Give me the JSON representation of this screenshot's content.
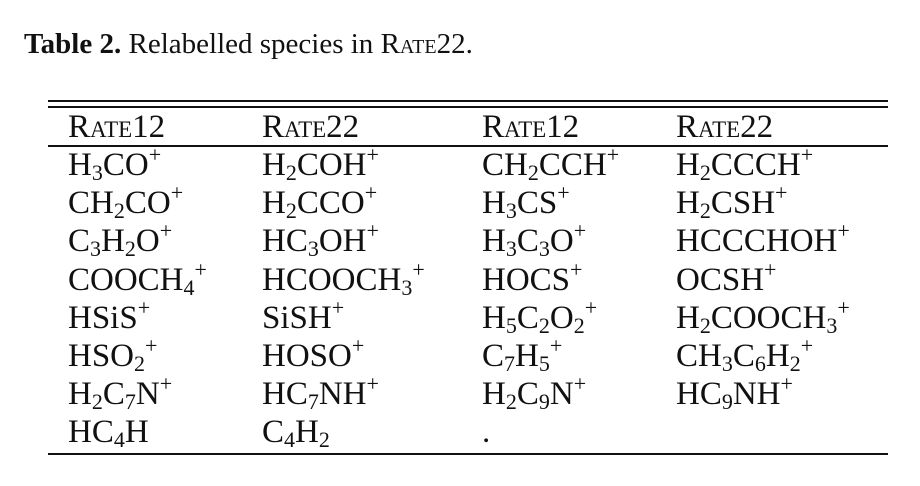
{
  "caption": {
    "label": "Table 2.",
    "text": "Relabelled species in ",
    "catalog": "Rate22",
    "end": "."
  },
  "table": {
    "headers": [
      "Rate12",
      "Rate22",
      "Rate12",
      "Rate22"
    ],
    "rows": [
      [
        "H_3CO^+",
        "H_2COH^+",
        "CH_2CCH^+",
        "H_2CCCH^+"
      ],
      [
        "CH_2CO^+",
        "H_2CCO^+",
        "H_3CS^+",
        "H_2CSH^+"
      ],
      [
        "C_3H_2O^+",
        "HC_3OH^+",
        "H_3C_3O^+",
        "HCCCHOH^+"
      ],
      [
        "COOCH_4^+",
        "HCOOCH_3^+",
        "HOCS^+",
        "OCSH^+"
      ],
      [
        "HSiS^+",
        "SiSH^+",
        "H_5C_2O_2^+",
        "H_2COOCH_3^+"
      ],
      [
        "HSO_2^+",
        "HOSO^+",
        "C_7H_5^+",
        "CH_3C_6H_2^+"
      ],
      [
        "H_2C_7N^+",
        "HC_7NH^+",
        "H_2C_9N^+",
        "HC_9NH^+"
      ],
      [
        "HC_4H",
        "C_4H_2",
        ".",
        ""
      ]
    ]
  }
}
